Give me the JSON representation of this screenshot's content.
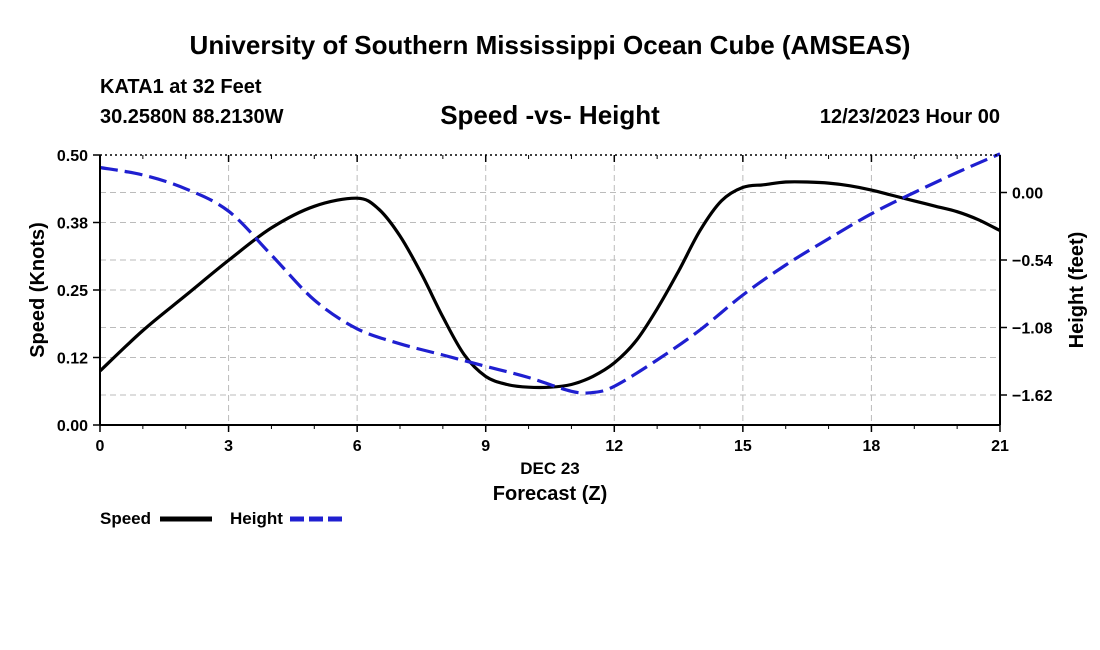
{
  "header": {
    "title": "University of Southern Mississippi Ocean Cube (AMSEAS)",
    "station": "KATA1 at 32 Feet",
    "coords": "30.2580N  88.2130W",
    "subtitle": "Speed -vs- Height",
    "datetime": "12/23/2023 Hour 00"
  },
  "footer": {
    "title": "University of Southern Mississippi Ocean Cube (AMSEAS)"
  },
  "legend": {
    "speed_label": "Speed",
    "height_label": "Height"
  },
  "colors": {
    "speed": "#000000",
    "height": "#1f1fd0",
    "grid": "#bbbbbb"
  },
  "chart_data": {
    "type": "line",
    "xlabel": "Forecast (Z)",
    "xlabel_top": "DEC 23",
    "ylabel_left": "Speed (Knots)",
    "ylabel_right": "Height (feet)",
    "xlim": [
      0,
      21
    ],
    "ylim_left": [
      0,
      0.5
    ],
    "ylim_right": [
      -1.86,
      0.3
    ],
    "x_ticks": [
      0,
      3,
      6,
      9,
      12,
      15,
      18,
      21
    ],
    "x_tick_labels": [
      "0",
      "3",
      "6",
      "9",
      "12",
      "15",
      "18",
      "21"
    ],
    "y_left_ticks": [
      0,
      0.125,
      0.25,
      0.375,
      0.5
    ],
    "y_left_tick_labels": [
      "0.00",
      "0.12",
      "0.25",
      "0.38",
      "0.50"
    ],
    "y_right_ticks": [
      0.0,
      -0.54,
      -1.08,
      -1.62
    ],
    "y_right_tick_labels": [
      "0.00",
      "−0.54",
      "−1.08",
      "−1.62"
    ],
    "grid": true,
    "series": [
      {
        "name": "Speed",
        "axis": "left",
        "style": "solid",
        "x": [
          0,
          1,
          2,
          3,
          4,
          5,
          6,
          6.5,
          7,
          7.5,
          8,
          8.5,
          9,
          9.5,
          10,
          10.5,
          11,
          11.5,
          12,
          12.5,
          13,
          13.5,
          14,
          14.5,
          15,
          15.5,
          16,
          16.5,
          17,
          17.5,
          18,
          18.5,
          19,
          19.5,
          20,
          20.5,
          21
        ],
        "values": [
          0.1,
          0.175,
          0.24,
          0.305,
          0.365,
          0.405,
          0.42,
          0.4,
          0.35,
          0.28,
          0.2,
          0.13,
          0.09,
          0.075,
          0.07,
          0.07,
          0.075,
          0.09,
          0.115,
          0.155,
          0.215,
          0.285,
          0.36,
          0.415,
          0.44,
          0.445,
          0.45,
          0.45,
          0.448,
          0.443,
          0.435,
          0.425,
          0.415,
          0.405,
          0.395,
          0.38,
          0.36
        ]
      },
      {
        "name": "Height",
        "axis": "right",
        "style": "dashed",
        "x": [
          0,
          1,
          2,
          3,
          4,
          5,
          6,
          7,
          8,
          9,
          10,
          11,
          11.5,
          12,
          13,
          14,
          15,
          16,
          17,
          18,
          19,
          20,
          21
        ],
        "values": [
          0.2,
          0.14,
          0.03,
          -0.15,
          -0.5,
          -0.86,
          -1.09,
          -1.21,
          -1.3,
          -1.39,
          -1.48,
          -1.59,
          -1.6,
          -1.55,
          -1.34,
          -1.1,
          -0.82,
          -0.58,
          -0.37,
          -0.17,
          0.0,
          0.16,
          0.31
        ]
      }
    ]
  }
}
